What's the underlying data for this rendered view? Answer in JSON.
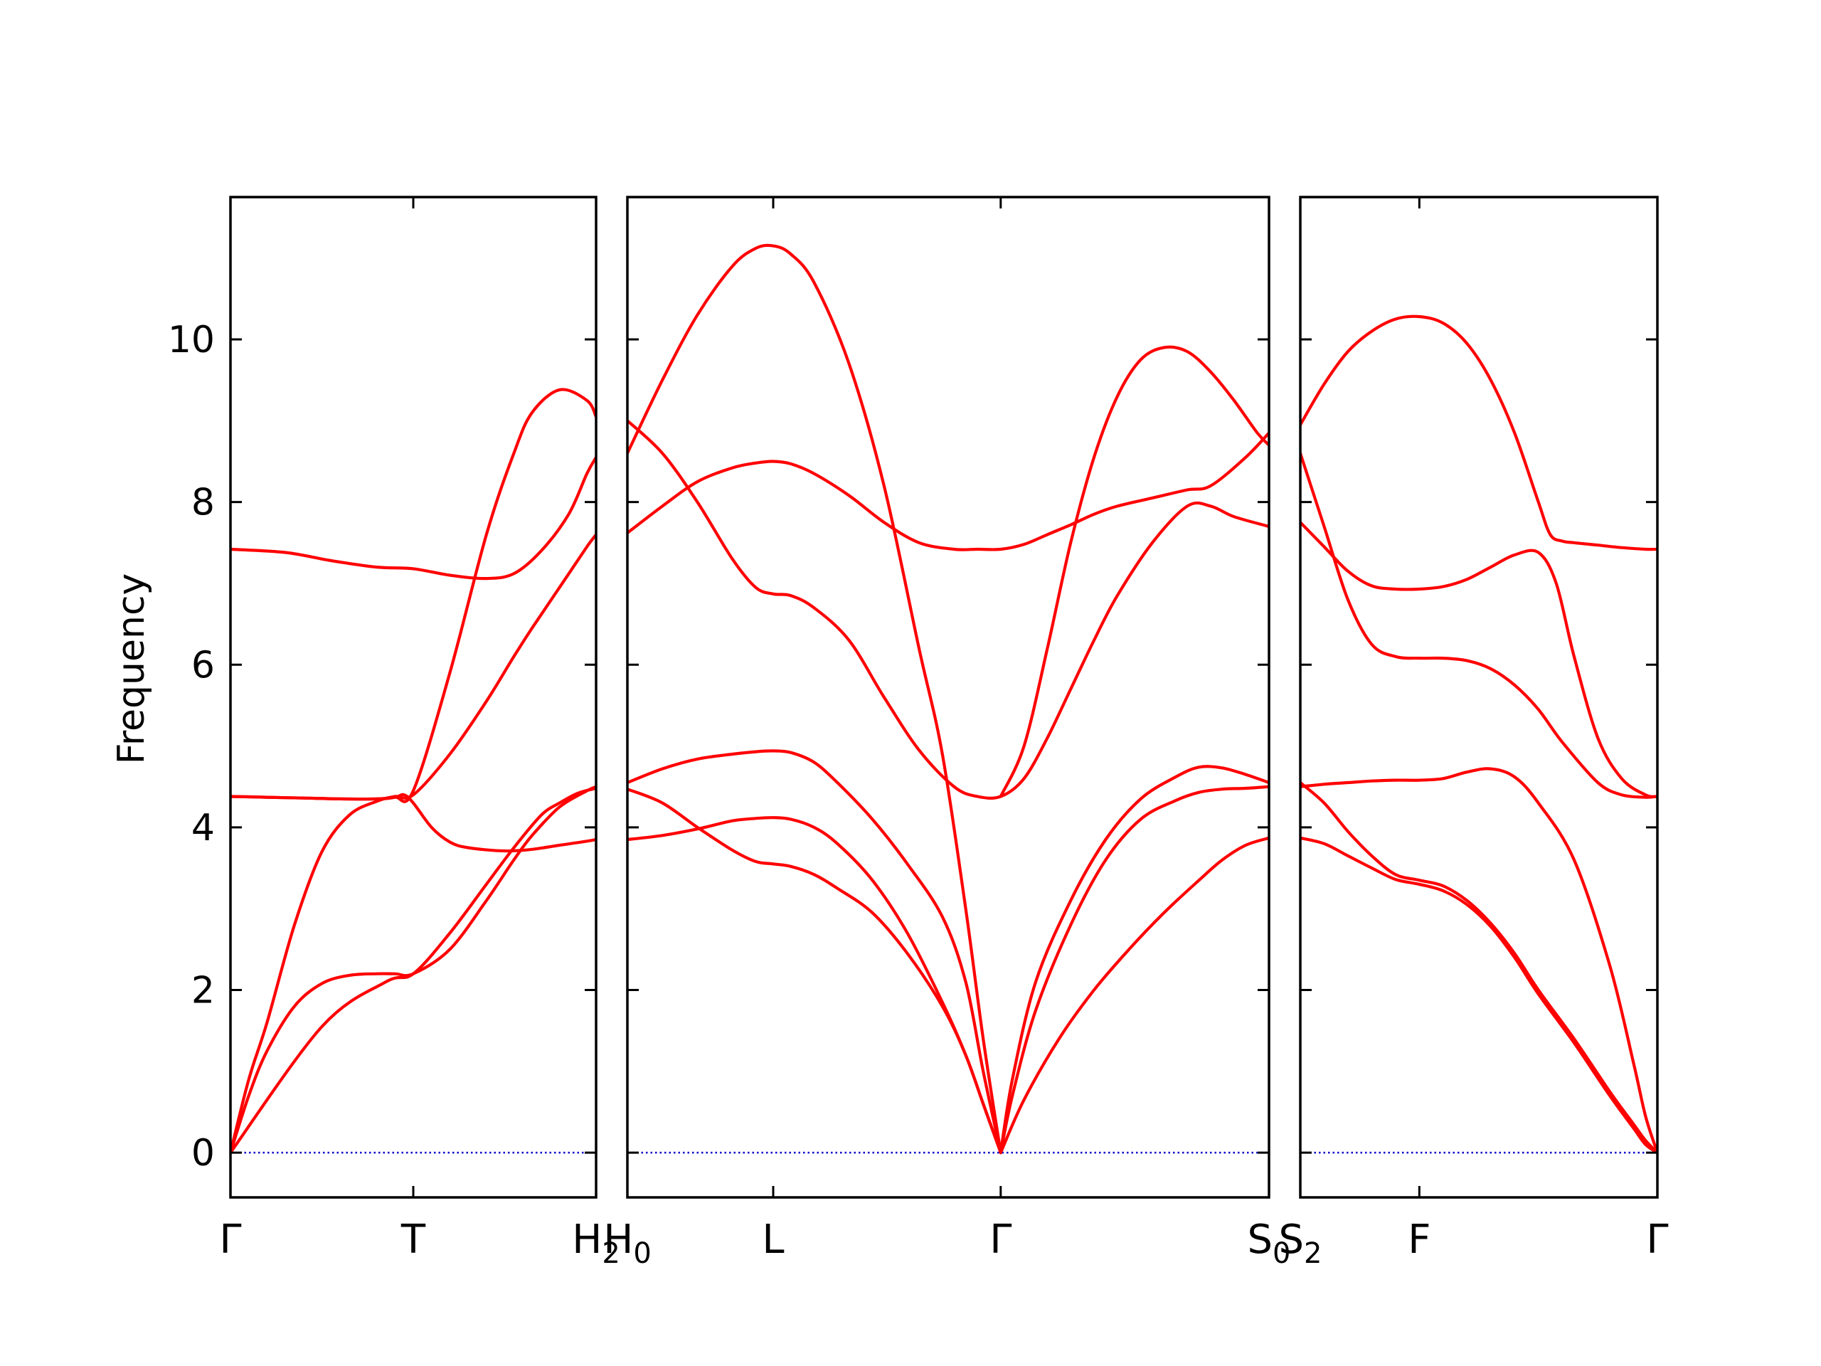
{
  "chart_data": {
    "type": "line",
    "title": "",
    "ylabel": "Frequency",
    "ylim": [
      -0.55,
      11.75
    ],
    "yticks": [
      0,
      2,
      4,
      6,
      8,
      10
    ],
    "grid": false,
    "legend": "none",
    "colors": {
      "bands": "#ff0000",
      "zero_line": "#0000cc"
    },
    "panels": [
      {
        "x_range": [
          0,
          2
        ],
        "kpoints": [
          {
            "x": 0,
            "label": "Γ"
          },
          {
            "x": 1,
            "label": "T"
          },
          {
            "x": 2,
            "label": "H",
            "sub": "2"
          }
        ],
        "series": [
          {
            "x": [
              0,
              0.1,
              0.2,
              0.35,
              0.5,
              0.65,
              0.8,
              0.9,
              1.0,
              1.2,
              1.4,
              1.55,
              1.65,
              1.8,
              1.95,
              2.0
            ],
            "y": [
              0,
              0.7,
              1.25,
              1.8,
              2.08,
              2.18,
              2.2,
              2.2,
              2.2,
              2.5,
              3.1,
              3.6,
              3.9,
              4.25,
              4.45,
              4.5
            ]
          },
          {
            "x": [
              0,
              0.1,
              0.2,
              0.35,
              0.5,
              0.65,
              0.8,
              0.9,
              1.0,
              1.2,
              1.4,
              1.55,
              1.65,
              1.8,
              1.95,
              2.0
            ],
            "y": [
              0,
              0.9,
              1.6,
              2.8,
              3.7,
              4.15,
              4.32,
              4.38,
              4.4,
              4.9,
              5.55,
              6.1,
              6.45,
              6.95,
              7.45,
              7.6
            ]
          },
          {
            "x": [
              0,
              0.2,
              0.4,
              0.6,
              0.8,
              0.9,
              1.0,
              1.2,
              1.4,
              1.55,
              1.65,
              1.8,
              1.95,
              2.0
            ],
            "y": [
              4.38,
              4.37,
              4.36,
              4.35,
              4.35,
              4.37,
              4.45,
              5.9,
              7.6,
              8.6,
              9.1,
              9.38,
              9.25,
              9.05
            ]
          },
          {
            "x": [
              0,
              0.2,
              0.4,
              0.6,
              0.8,
              0.9,
              0.95,
              1.0,
              1.1,
              1.2,
              1.3,
              1.5,
              1.65,
              1.8,
              1.95,
              2.0
            ],
            "y": [
              4.38,
              4.37,
              4.36,
              4.35,
              4.35,
              4.37,
              4.4,
              4.3,
              4.0,
              3.82,
              3.75,
              3.71,
              3.73,
              3.78,
              3.83,
              3.85
            ]
          },
          {
            "x": [
              0,
              0.3,
              0.55,
              0.8,
              1.0,
              1.2,
              1.4,
              1.55,
              1.7,
              1.85,
              1.95,
              2.0
            ],
            "y": [
              7.42,
              7.38,
              7.28,
              7.2,
              7.18,
              7.1,
              7.06,
              7.12,
              7.4,
              7.85,
              8.35,
              8.55
            ]
          },
          {
            "x": [
              0,
              0.5,
              0.85,
              1.0,
              1.2,
              1.4,
              1.55,
              1.7,
              1.8,
              1.9,
              2.0
            ],
            "y": [
              0,
              1.55,
              2.1,
              2.2,
              2.7,
              3.3,
              3.75,
              4.15,
              4.3,
              4.42,
              4.48
            ]
          }
        ]
      },
      {
        "x_range": [
          0,
          5.5
        ],
        "kpoints": [
          {
            "x": 0,
            "label": "H",
            "sub": "0"
          },
          {
            "x": 1.25,
            "label": "L"
          },
          {
            "x": 3.2,
            "label": "Γ"
          },
          {
            "x": 5.5,
            "label": "S",
            "sub": "0"
          }
        ],
        "series": [
          {
            "x": [
              0,
              0.3,
              0.6,
              0.9,
              1.1,
              1.25,
              1.4,
              1.6,
              1.9,
              2.2,
              2.5,
              2.7,
              2.9,
              3.05,
              3.2
            ],
            "y": [
              8.6,
              9.5,
              10.3,
              10.9,
              11.12,
              11.15,
              11.05,
              10.7,
              9.7,
              8.2,
              6.2,
              4.9,
              3.0,
              1.4,
              0
            ]
          },
          {
            "x": [
              0,
              0.3,
              0.6,
              0.9,
              1.1,
              1.25,
              1.4,
              1.6,
              1.9,
              2.2,
              2.5,
              2.8,
              3.0,
              3.2,
              3.4,
              3.6,
              3.8,
              4.0,
              4.2,
              4.5,
              4.8,
              5.0,
              5.3,
              5.5
            ],
            "y": [
              7.62,
              7.95,
              8.25,
              8.42,
              8.48,
              8.5,
              8.47,
              8.35,
              8.08,
              7.75,
              7.5,
              7.42,
              7.42,
              7.42,
              7.48,
              7.6,
              7.72,
              7.85,
              7.95,
              8.05,
              8.15,
              8.2,
              8.55,
              8.85
            ]
          },
          {
            "x": [
              0,
              0.3,
              0.6,
              0.9,
              1.1,
              1.25,
              1.4,
              1.6,
              1.9,
              2.2,
              2.5,
              2.8,
              3.0,
              3.2,
              3.4,
              3.6,
              3.8,
              4.0,
              4.2,
              4.5,
              4.8,
              5.0,
              5.2,
              5.5
            ],
            "y": [
              9.0,
              8.6,
              8.0,
              7.3,
              6.95,
              6.87,
              6.85,
              6.7,
              6.3,
              5.6,
              4.95,
              4.5,
              4.38,
              4.38,
              4.6,
              5.1,
              5.7,
              6.3,
              6.85,
              7.5,
              7.95,
              7.95,
              7.82,
              7.7
            ]
          },
          {
            "x": [
              0,
              0.3,
              0.6,
              0.9,
              1.1,
              1.25,
              1.4,
              1.6,
              1.8,
              2.1,
              2.4,
              2.7,
              2.9,
              3.05,
              3.2
            ],
            "y": [
              4.55,
              4.72,
              4.84,
              4.9,
              4.93,
              4.94,
              4.92,
              4.8,
              4.55,
              4.1,
              3.55,
              2.9,
              2.1,
              1.0,
              0
            ]
          },
          {
            "x": [
              0,
              0.3,
              0.6,
              0.9,
              1.1,
              1.25,
              1.4,
              1.6,
              1.8,
              2.1,
              2.4,
              2.7,
              2.9,
              3.05,
              3.2
            ],
            "y": [
              4.47,
              4.3,
              4.0,
              3.72,
              3.58,
              3.55,
              3.52,
              3.42,
              3.25,
              2.95,
              2.45,
              1.8,
              1.2,
              0.6,
              0
            ]
          },
          {
            "x": [
              0,
              0.3,
              0.6,
              0.9,
              1.1,
              1.25,
              1.4,
              1.6,
              1.8,
              2.1,
              2.4,
              2.7,
              2.9,
              3.05,
              3.2
            ],
            "y": [
              3.85,
              3.9,
              3.98,
              4.08,
              4.11,
              4.12,
              4.1,
              4.0,
              3.8,
              3.35,
              2.7,
              1.85,
              1.2,
              0.6,
              0
            ]
          },
          {
            "x": [
              3.2,
              3.3,
              3.5,
              3.8,
              4.1,
              4.4,
              4.7,
              4.9,
              5.1,
              5.3,
              5.5
            ],
            "y": [
              0,
              0.9,
              2.1,
              3.1,
              3.85,
              4.35,
              4.62,
              4.74,
              4.73,
              4.65,
              4.55
            ]
          },
          {
            "x": [
              3.2,
              3.3,
              3.5,
              3.8,
              4.1,
              4.4,
              4.7,
              4.9,
              5.1,
              5.3,
              5.5
            ],
            "y": [
              0,
              0.7,
              1.75,
              2.8,
              3.6,
              4.1,
              4.33,
              4.43,
              4.47,
              4.48,
              4.5
            ]
          },
          {
            "x": [
              3.2,
              3.4,
              3.7,
              4.0,
              4.3,
              4.6,
              4.9,
              5.1,
              5.3,
              5.5
            ],
            "y": [
              0,
              0.65,
              1.4,
              2.0,
              2.5,
              2.95,
              3.35,
              3.6,
              3.78,
              3.87
            ]
          },
          {
            "x": [
              3.2,
              3.4,
              3.6,
              3.8,
              4.0,
              4.2,
              4.4,
              4.6,
              4.8,
              5.0,
              5.2,
              5.4,
              5.5
            ],
            "y": [
              4.38,
              5.0,
              6.2,
              7.5,
              8.55,
              9.3,
              9.75,
              9.9,
              9.85,
              9.6,
              9.25,
              8.85,
              8.7
            ]
          }
        ]
      },
      {
        "x_range": [
          0,
          3
        ],
        "kpoints": [
          {
            "x": 0,
            "label": "S",
            "sub": "2"
          },
          {
            "x": 1,
            "label": "F"
          },
          {
            "x": 3,
            "label": "Γ"
          }
        ],
        "series": [
          {
            "x": [
              0,
              0.2,
              0.4,
              0.6,
              0.8,
              1.0,
              1.2,
              1.4,
              1.6,
              1.8,
              2.0,
              2.1,
              2.2,
              2.3,
              2.5,
              2.7,
              2.9,
              3.0
            ],
            "y": [
              8.95,
              9.45,
              9.85,
              10.1,
              10.25,
              10.28,
              10.2,
              9.95,
              9.5,
              8.85,
              8.0,
              7.6,
              7.52,
              7.5,
              7.47,
              7.44,
              7.42,
              7.42
            ]
          },
          {
            "x": [
              0,
              0.2,
              0.4,
              0.6,
              0.8,
              1.0,
              1.2,
              1.4,
              1.6,
              1.8,
              2.0,
              2.15,
              2.3,
              2.5,
              2.7,
              2.9,
              3.0
            ],
            "y": [
              7.75,
              7.45,
              7.15,
              6.97,
              6.93,
              6.93,
              6.96,
              7.05,
              7.2,
              7.35,
              7.38,
              7.0,
              6.1,
              5.1,
              4.6,
              4.4,
              4.38
            ]
          },
          {
            "x": [
              0,
              0.2,
              0.4,
              0.6,
              0.8,
              1.0,
              1.2,
              1.4,
              1.6,
              1.8,
              2.0,
              2.2,
              2.5,
              2.7,
              2.9,
              3.0
            ],
            "y": [
              8.6,
              7.7,
              6.8,
              6.25,
              6.1,
              6.08,
              6.08,
              6.05,
              5.95,
              5.75,
              5.45,
              5.05,
              4.55,
              4.4,
              4.37,
              4.38
            ]
          },
          {
            "x": [
              0,
              0.2,
              0.4,
              0.6,
              0.8,
              1.0,
              1.2,
              1.4,
              1.6,
              1.8,
              2.0,
              2.3,
              2.6,
              2.8,
              2.9,
              3.0
            ],
            "y": [
              4.5,
              4.53,
              4.55,
              4.57,
              4.58,
              4.58,
              4.6,
              4.68,
              4.72,
              4.62,
              4.3,
              3.6,
              2.3,
              1.1,
              0.45,
              0
            ]
          },
          {
            "x": [
              0,
              0.2,
              0.4,
              0.6,
              0.8,
              1.0,
              1.2,
              1.4,
              1.6,
              1.8,
              2.0,
              2.3,
              2.6,
              2.8,
              2.9,
              3.0
            ],
            "y": [
              4.55,
              4.3,
              3.95,
              3.65,
              3.42,
              3.35,
              3.28,
              3.1,
              2.82,
              2.45,
              2.0,
              1.4,
              0.75,
              0.35,
              0.15,
              0
            ]
          },
          {
            "x": [
              0,
              0.2,
              0.4,
              0.6,
              0.8,
              1.0,
              1.2,
              1.4,
              1.6,
              1.8,
              2.0,
              2.3,
              2.6,
              2.8,
              2.9,
              3.0
            ],
            "y": [
              3.87,
              3.8,
              3.65,
              3.5,
              3.36,
              3.3,
              3.22,
              3.05,
              2.78,
              2.4,
              1.95,
              1.35,
              0.7,
              0.3,
              0.1,
              0
            ]
          }
        ]
      }
    ]
  }
}
